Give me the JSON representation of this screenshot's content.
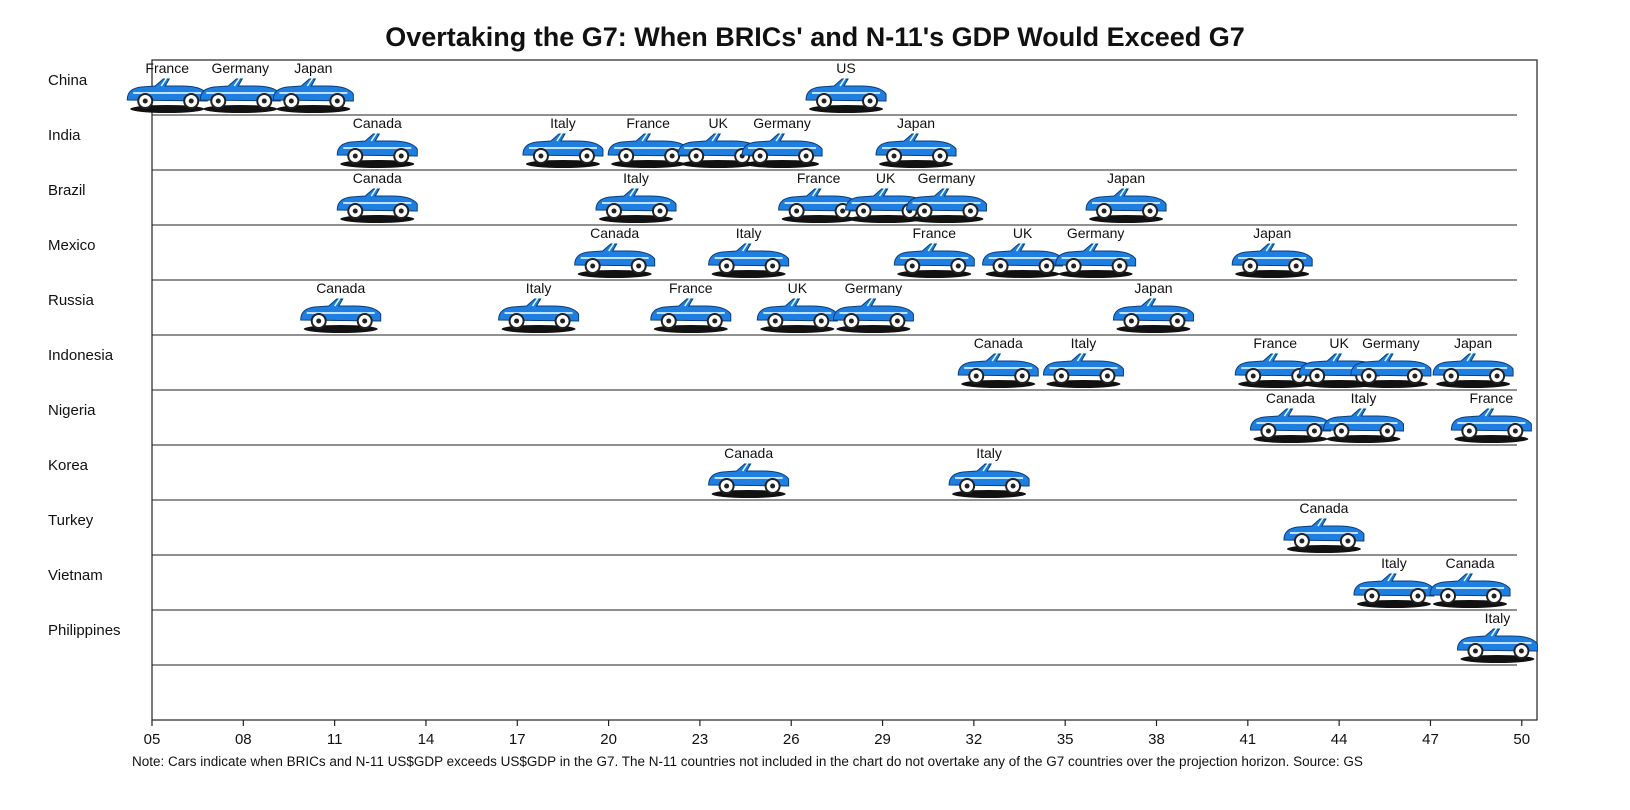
{
  "chart_data": {
    "type": "timeline",
    "title": "Overtaking the G7: When BRICs' and N-11's GDP Would Exceed G7",
    "note": "Note: Cars indicate when BRICs and N-11 US$GDP exceeds US$GDP in the G7. The N-11 countries not included in the chart do not overtake any of the G7 countries over the projection horizon. Source: GS",
    "categories": [
      "China",
      "India",
      "Brazil",
      "Mexico",
      "Russia",
      "Indonesia",
      "Nigeria",
      "Korea",
      "Turkey",
      "Vietnam",
      "Philippines"
    ],
    "rows": [
      {
        "labels": [
          "France",
          "Germany",
          "Japan",
          "US"
        ],
        "values": [
          5.5,
          7.9,
          10.3,
          27.8
        ]
      },
      {
        "labels": [
          "Canada",
          "Italy",
          "France",
          "UK",
          "Germany",
          "Japan"
        ],
        "values": [
          12.4,
          18.5,
          21.3,
          23.6,
          25.7,
          30.1
        ]
      },
      {
        "labels": [
          "Canada",
          "Italy",
          "France",
          "UK",
          "Germany",
          "Japan"
        ],
        "values": [
          12.4,
          20.9,
          26.9,
          29.1,
          31.1,
          37.0
        ]
      },
      {
        "labels": [
          "Canada",
          "Italy",
          "France",
          "UK",
          "Germany",
          "Japan"
        ],
        "values": [
          20.2,
          24.6,
          30.7,
          33.6,
          36.0,
          41.8
        ]
      },
      {
        "labels": [
          "Canada",
          "Italy",
          "France",
          "UK",
          "Germany",
          "Japan"
        ],
        "values": [
          11.2,
          17.7,
          22.7,
          26.2,
          28.7,
          37.9
        ]
      },
      {
        "labels": [
          "Canada",
          "Italy",
          "France",
          "UK",
          "Germany",
          "Japan"
        ],
        "values": [
          32.8,
          35.6,
          41.9,
          44.0,
          45.7,
          48.4
        ]
      },
      {
        "labels": [
          "Canada",
          "Italy",
          "France"
        ],
        "values": [
          42.4,
          44.8,
          49.0
        ]
      },
      {
        "labels": [
          "Canada",
          "Italy"
        ],
        "values": [
          24.6,
          32.5
        ]
      },
      {
        "labels": [
          "Canada"
        ],
        "values": [
          43.5
        ]
      },
      {
        "labels": [
          "Italy",
          "Canada"
        ],
        "values": [
          45.8,
          48.3
        ]
      },
      {
        "labels": [
          "Italy"
        ],
        "values": [
          49.2
        ]
      }
    ],
    "color": "#1f7fe0",
    "xlim": [
      5,
      50.5
    ],
    "xticks": [
      {
        "value": 5,
        "label": "05"
      },
      {
        "value": 8,
        "label": "08"
      },
      11,
      14,
      17,
      20,
      23,
      26,
      29,
      32,
      35,
      38,
      41,
      44,
      47,
      50
    ]
  }
}
